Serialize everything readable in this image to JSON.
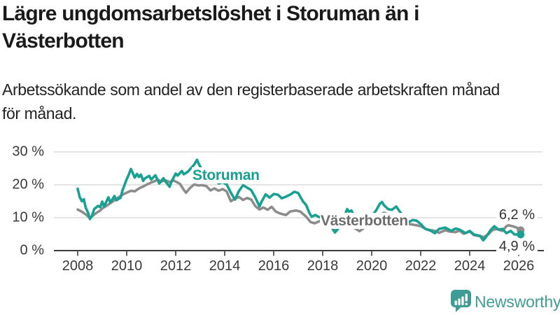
{
  "header": {
    "title_lines": [
      "Lägre ungdomsarbetslöshet i Storuman än i",
      "Västerbotten"
    ],
    "subtitle_lines": [
      "Arbetssökande som andel av den registerbaserade arbetskraften månad",
      "för månad."
    ]
  },
  "chart_data": {
    "type": "line",
    "title": "Lägre ungdomsarbetslöshet i Storuman än i Västerbotten",
    "subtitle": "Arbetssökande som andel av den registerbaserade arbetskraften månad för månad.",
    "unit": "%",
    "xlabel": "",
    "ylabel": "",
    "ylim": [
      0,
      30
    ],
    "xlim": [
      2007,
      2027
    ],
    "grid": true,
    "legend_position": "inline-labels",
    "y_axis": {
      "ticks": [
        {
          "value": 30,
          "label": "30 %"
        },
        {
          "value": 20,
          "label": "20 %"
        },
        {
          "value": 10,
          "label": "10 %"
        },
        {
          "value": 0,
          "label": "0 %"
        }
      ]
    },
    "x_axis": {
      "ticks": [
        {
          "value": 2008,
          "label": "2008"
        },
        {
          "value": 2010,
          "label": "2010"
        },
        {
          "value": 2012,
          "label": "2012"
        },
        {
          "value": 2014,
          "label": "2014"
        },
        {
          "value": 2016,
          "label": "2016"
        },
        {
          "value": 2018,
          "label": "2018"
        },
        {
          "value": 2020,
          "label": "2020"
        },
        {
          "value": 2022,
          "label": "2022"
        },
        {
          "value": 2024,
          "label": "2024"
        },
        {
          "value": 2026,
          "label": "2026"
        }
      ]
    },
    "series": [
      {
        "name": "Storuman",
        "color": "#18a093",
        "end_label": "4,9 %",
        "end_value": 4.9,
        "points": [
          [
            2008.0,
            18.8
          ],
          [
            2008.08,
            16.3
          ],
          [
            2008.17,
            15.0
          ],
          [
            2008.25,
            15.6
          ],
          [
            2008.33,
            13.0
          ],
          [
            2008.42,
            11.6
          ],
          [
            2008.5,
            9.6
          ],
          [
            2008.58,
            10.5
          ],
          [
            2008.67,
            12.6
          ],
          [
            2008.83,
            13.6
          ],
          [
            2008.92,
            13.2
          ],
          [
            2009.0,
            14.9
          ],
          [
            2009.08,
            13.4
          ],
          [
            2009.25,
            16.2
          ],
          [
            2009.33,
            14.6
          ],
          [
            2009.5,
            16.6
          ],
          [
            2009.58,
            15.3
          ],
          [
            2009.75,
            16.1
          ],
          [
            2009.83,
            18.3
          ],
          [
            2010.0,
            21.7
          ],
          [
            2010.08,
            23.0
          ],
          [
            2010.17,
            24.8
          ],
          [
            2010.25,
            23.5
          ],
          [
            2010.33,
            22.2
          ],
          [
            2010.42,
            23.3
          ],
          [
            2010.5,
            22.4
          ],
          [
            2010.58,
            23.1
          ],
          [
            2010.67,
            21.2
          ],
          [
            2010.75,
            22.0
          ],
          [
            2010.92,
            22.7
          ],
          [
            2011.0,
            21.6
          ],
          [
            2011.17,
            22.9
          ],
          [
            2011.33,
            20.4
          ],
          [
            2011.5,
            22.0
          ],
          [
            2011.58,
            21.0
          ],
          [
            2011.75,
            19.4
          ],
          [
            2011.83,
            21.0
          ],
          [
            2012.0,
            23.4
          ],
          [
            2012.08,
            22.8
          ],
          [
            2012.25,
            24.2
          ],
          [
            2012.33,
            23.2
          ],
          [
            2012.5,
            24.0
          ],
          [
            2012.58,
            24.7
          ],
          [
            2012.75,
            26.1
          ],
          [
            2012.87,
            27.6
          ],
          [
            2012.95,
            26.2
          ],
          [
            2013.05,
            24.9
          ],
          [
            2013.17,
            24.0
          ],
          [
            2013.25,
            22.5
          ],
          [
            2013.33,
            23.3
          ],
          [
            2013.5,
            21.1
          ],
          [
            2013.58,
            21.9
          ],
          [
            2013.75,
            20.4
          ],
          [
            2013.92,
            20.8
          ],
          [
            2014.08,
            20.1
          ],
          [
            2014.25,
            17.6
          ],
          [
            2014.42,
            15.5
          ],
          [
            2014.58,
            18.1
          ],
          [
            2014.75,
            19.9
          ],
          [
            2014.92,
            19.1
          ],
          [
            2015.08,
            18.4
          ],
          [
            2015.25,
            16.1
          ],
          [
            2015.42,
            13.4
          ],
          [
            2015.5,
            14.8
          ],
          [
            2015.67,
            17.1
          ],
          [
            2015.83,
            16.1
          ],
          [
            2016.0,
            17.2
          ],
          [
            2016.17,
            17.0
          ],
          [
            2016.33,
            15.9
          ],
          [
            2016.5,
            16.4
          ],
          [
            2016.67,
            17.0
          ],
          [
            2016.85,
            17.9
          ],
          [
            2017.0,
            17.5
          ],
          [
            2017.2,
            14.9
          ],
          [
            2017.33,
            13.8
          ],
          [
            2017.45,
            11.5
          ],
          [
            2017.55,
            10.3
          ],
          [
            2017.7,
            10.8
          ],
          [
            2017.85,
            10.2
          ],
          [
            2018.0,
            9.9
          ],
          [
            2018.17,
            9.2
          ],
          [
            2018.33,
            7.5
          ],
          [
            2018.5,
            5.5
          ],
          [
            2018.67,
            7.0
          ],
          [
            2018.83,
            9.5
          ],
          [
            2019.0,
            12.6
          ],
          [
            2019.08,
            11.8
          ],
          [
            2019.17,
            12.2
          ],
          [
            2019.33,
            10.0
          ],
          [
            2019.5,
            7.0
          ],
          [
            2019.67,
            8.0
          ],
          [
            2019.83,
            9.2
          ],
          [
            2020.0,
            10.6
          ],
          [
            2020.17,
            12.1
          ],
          [
            2020.33,
            14.2
          ],
          [
            2020.42,
            14.8
          ],
          [
            2020.5,
            13.8
          ],
          [
            2020.67,
            12.6
          ],
          [
            2020.83,
            12.4
          ],
          [
            2021.0,
            13.4
          ],
          [
            2021.17,
            11.6
          ],
          [
            2021.33,
            10.4
          ],
          [
            2021.5,
            8.6
          ],
          [
            2021.67,
            9.3
          ],
          [
            2021.83,
            9.1
          ],
          [
            2022.0,
            8.1
          ],
          [
            2022.17,
            6.7
          ],
          [
            2022.42,
            6.0
          ],
          [
            2022.58,
            5.3
          ],
          [
            2022.75,
            6.6
          ],
          [
            2023.0,
            7.0
          ],
          [
            2023.25,
            6.0
          ],
          [
            2023.42,
            6.7
          ],
          [
            2023.58,
            6.4
          ],
          [
            2023.83,
            5.3
          ],
          [
            2024.0,
            6.0
          ],
          [
            2024.17,
            4.9
          ],
          [
            2024.42,
            4.5
          ],
          [
            2024.55,
            3.1
          ],
          [
            2024.67,
            4.2
          ],
          [
            2024.83,
            6.0
          ],
          [
            2025.0,
            7.4
          ],
          [
            2025.17,
            6.4
          ],
          [
            2025.33,
            6.6
          ],
          [
            2025.5,
            5.3
          ],
          [
            2025.67,
            6.0
          ],
          [
            2025.83,
            4.9
          ],
          [
            2026.08,
            4.9
          ]
        ]
      },
      {
        "name": "Västerbotten",
        "color": "#8c8c8c",
        "end_label": "6,2 %",
        "end_value": 6.2,
        "points": [
          [
            2008.0,
            12.5
          ],
          [
            2008.17,
            11.8
          ],
          [
            2008.33,
            11.0
          ],
          [
            2008.5,
            9.9
          ],
          [
            2008.58,
            10.4
          ],
          [
            2008.75,
            11.4
          ],
          [
            2008.92,
            12.2
          ],
          [
            2009.0,
            12.8
          ],
          [
            2009.17,
            13.6
          ],
          [
            2009.33,
            14.4
          ],
          [
            2009.5,
            15.3
          ],
          [
            2009.67,
            16.2
          ],
          [
            2009.83,
            17.0
          ],
          [
            2010.0,
            17.6
          ],
          [
            2010.17,
            18.2
          ],
          [
            2010.33,
            18.0
          ],
          [
            2010.5,
            18.9
          ],
          [
            2010.67,
            19.5
          ],
          [
            2010.83,
            20.1
          ],
          [
            2011.0,
            20.7
          ],
          [
            2011.17,
            21.2
          ],
          [
            2011.25,
            21.6
          ],
          [
            2011.42,
            21.0
          ],
          [
            2011.58,
            21.4
          ],
          [
            2011.75,
            20.8
          ],
          [
            2011.92,
            21.3
          ],
          [
            2012.0,
            21.0
          ],
          [
            2012.17,
            20.3
          ],
          [
            2012.33,
            18.5
          ],
          [
            2012.42,
            17.6
          ],
          [
            2012.58,
            19.0
          ],
          [
            2012.75,
            20.1
          ],
          [
            2012.92,
            19.8
          ],
          [
            2013.08,
            19.9
          ],
          [
            2013.25,
            19.6
          ],
          [
            2013.42,
            18.3
          ],
          [
            2013.58,
            18.9
          ],
          [
            2013.75,
            18.2
          ],
          [
            2013.92,
            18.7
          ],
          [
            2014.08,
            18.0
          ],
          [
            2014.25,
            15.0
          ],
          [
            2014.42,
            15.8
          ],
          [
            2014.58,
            16.3
          ],
          [
            2014.75,
            15.4
          ],
          [
            2014.92,
            16.0
          ],
          [
            2015.08,
            15.5
          ],
          [
            2015.25,
            13.5
          ],
          [
            2015.42,
            12.5
          ],
          [
            2015.58,
            13.1
          ],
          [
            2015.75,
            12.4
          ],
          [
            2015.92,
            13.3
          ],
          [
            2016.08,
            11.9
          ],
          [
            2016.25,
            11.3
          ],
          [
            2016.5,
            10.8
          ],
          [
            2016.67,
            11.9
          ],
          [
            2016.92,
            12.2
          ],
          [
            2017.08,
            11.9
          ],
          [
            2017.33,
            10.3
          ],
          [
            2017.5,
            8.7
          ],
          [
            2017.67,
            8.3
          ],
          [
            2017.92,
            9.1
          ],
          [
            2018.08,
            9.5
          ],
          [
            2018.33,
            8.3
          ],
          [
            2018.5,
            6.5
          ],
          [
            2018.75,
            7.6
          ],
          [
            2019.0,
            8.8
          ],
          [
            2019.25,
            7.1
          ],
          [
            2019.5,
            5.9
          ],
          [
            2019.75,
            7.2
          ],
          [
            2020.0,
            8.5
          ],
          [
            2020.25,
            10.4
          ],
          [
            2020.5,
            11.5
          ],
          [
            2020.75,
            10.8
          ],
          [
            2021.0,
            10.4
          ],
          [
            2021.25,
            9.2
          ],
          [
            2021.5,
            8.1
          ],
          [
            2021.83,
            7.7
          ],
          [
            2022.0,
            7.4
          ],
          [
            2022.25,
            6.4
          ],
          [
            2022.58,
            6.0
          ],
          [
            2022.75,
            5.4
          ],
          [
            2023.0,
            6.2
          ],
          [
            2023.17,
            5.8
          ],
          [
            2023.42,
            5.6
          ],
          [
            2023.58,
            6.1
          ],
          [
            2023.75,
            5.1
          ],
          [
            2024.0,
            5.8
          ],
          [
            2024.17,
            4.7
          ],
          [
            2024.42,
            4.4
          ],
          [
            2024.58,
            4.1
          ],
          [
            2024.75,
            4.9
          ],
          [
            2024.92,
            6.2
          ],
          [
            2025.08,
            6.6
          ],
          [
            2025.33,
            6.0
          ],
          [
            2025.5,
            7.4
          ],
          [
            2025.58,
            7.7
          ],
          [
            2025.75,
            7.4
          ],
          [
            2025.92,
            7.0
          ],
          [
            2026.08,
            6.2
          ]
        ]
      }
    ],
    "colors": {
      "storuman": "#18a093",
      "vasterbotten": "#8c8c8c",
      "gridline": "#dcdcdc",
      "axis": "#3c3c3c",
      "brand": "#3f9c95"
    }
  },
  "footer": {
    "brand": "Newsworthy"
  }
}
